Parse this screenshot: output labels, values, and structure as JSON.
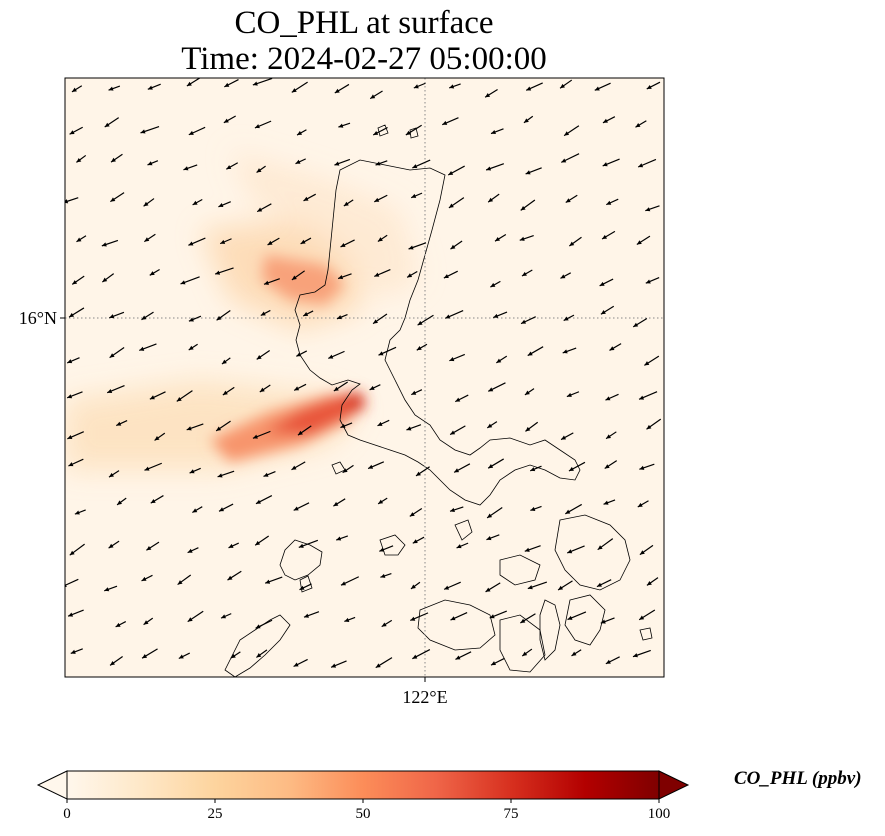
{
  "title": {
    "line1": "CO_PHL at surface",
    "line2": "Time: 2024-02-27 05:00:00"
  },
  "map": {
    "lat_label": "16°N",
    "lon_label": "122°E",
    "gridline_style": "dotted",
    "coastline_color": "#000000",
    "plume_colors": [
      "#fff5e8",
      "#fdd9a8",
      "#fdb57e",
      "#f3714a",
      "#d7301f"
    ],
    "wind_arrow_color": "#000000",
    "wind_direction": "from north-east toward south-west"
  },
  "colorbar": {
    "label": "CO_PHL (ppbv)",
    "ticks": [
      "0",
      "25",
      "50",
      "75",
      "100"
    ],
    "min": 0,
    "max": 100,
    "colormap": "OrRd",
    "stops": [
      "#fff7ec",
      "#fee8c8",
      "#fdd49e",
      "#fdbb84",
      "#fc8d59",
      "#ef6548",
      "#d7301f",
      "#b30000",
      "#7f0000"
    ],
    "extend": "both"
  }
}
